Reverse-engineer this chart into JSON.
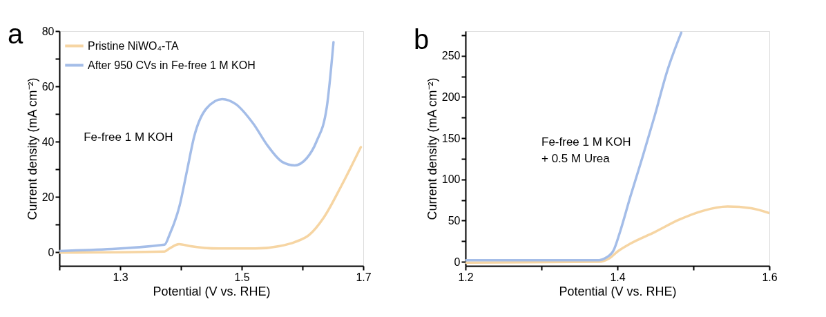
{
  "chart_data": [
    {
      "type": "line",
      "title": "a",
      "xlabel": "Potential (V vs. RHE)",
      "ylabel": "Current density (mA cm⁻²)",
      "annotations": [
        "Fe-free 1 M KOH"
      ],
      "xlim": [
        1.2,
        1.7
      ],
      "ylim": [
        -5,
        80
      ],
      "xticks": [
        {
          "value": 1.2,
          "label": null
        },
        1.3,
        {
          "value": 1.4,
          "label": null
        },
        1.5,
        {
          "value": 1.6,
          "label": null
        },
        1.7
      ],
      "yticks": [
        0,
        {
          "value": 10,
          "label": null
        },
        20,
        {
          "value": 30,
          "label": null
        },
        40,
        {
          "value": 50,
          "label": null
        },
        60,
        {
          "value": 70,
          "label": null
        },
        80
      ],
      "grid": false,
      "legend": "top left",
      "marker": "none",
      "line_style": "solid",
      "series": [
        {
          "name": "Pristine NiWO₄-TA",
          "color": "#f6d5a3",
          "x": [
            1.2,
            1.373,
            1.381,
            1.397,
            1.414,
            1.462,
            1.523,
            1.563,
            1.587,
            1.611,
            1.635,
            1.664,
            1.696
          ],
          "values": [
            -0.2,
            0.2,
            1.3,
            2.9,
            2.2,
            1.3,
            1.3,
            2.2,
            3.6,
            6.2,
            12.5,
            24,
            38
          ]
        },
        {
          "name": "After 950 CVs in Fe-free 1 M KOH",
          "color": "#a4bde8",
          "x": [
            1.2,
            1.373,
            1.381,
            1.398,
            1.41,
            1.422,
            1.442,
            1.468,
            1.49,
            1.519,
            1.543,
            1.567,
            1.587,
            1.607,
            1.623,
            1.64,
            1.651
          ],
          "values": [
            0.4,
            2.7,
            6.2,
            17,
            29.5,
            42,
            52,
            55.4,
            53.6,
            46.5,
            38.4,
            32.6,
            31.4,
            34,
            40,
            52.5,
            76
          ]
        }
      ]
    },
    {
      "type": "line",
      "title": "b",
      "xlabel": "Potential (V vs. RHE)",
      "ylabel": "Current density (mA cm⁻²)",
      "annotations": [
        "Fe-free 1 M KOH\n   + 0.5 M Urea"
      ],
      "xlim": [
        1.2,
        1.6
      ],
      "ylim": [
        -5,
        280
      ],
      "xticks": [
        1.2,
        {
          "value": 1.3,
          "label": null
        },
        1.4,
        {
          "value": 1.5,
          "label": null
        },
        1.6
      ],
      "yticks": [
        0,
        {
          "value": 25,
          "label": null
        },
        50,
        {
          "value": 75,
          "label": null
        },
        100,
        {
          "value": 125,
          "label": null
        },
        150,
        {
          "value": 175,
          "label": null
        },
        200,
        {
          "value": 225,
          "label": null
        },
        250,
        {
          "value": 275,
          "label": null
        }
      ],
      "grid": false,
      "legend": "top left",
      "marker": "none",
      "line_style": "solid",
      "series": [
        {
          "name": "Pristine NiWO₄-TA",
          "color": "#f6d5a3",
          "x": [
            1.2,
            1.376,
            1.389,
            1.401,
            1.417,
            1.449,
            1.481,
            1.513,
            1.545,
            1.576,
            1.6
          ],
          "values": [
            -1,
            0,
            4,
            13,
            22,
            36,
            51,
            62,
            67,
            65,
            59
          ]
        },
        {
          "name": "After 950 CVs in Fe-free 1 M KOH",
          "color": "#a4bde8",
          "x": [
            1.2,
            1.376,
            1.385,
            1.395,
            1.403,
            1.417,
            1.433,
            1.449,
            1.465,
            1.484
          ],
          "values": [
            2,
            2,
            5,
            14,
            35,
            79,
            127,
            177,
            230,
            278
          ]
        }
      ]
    }
  ]
}
